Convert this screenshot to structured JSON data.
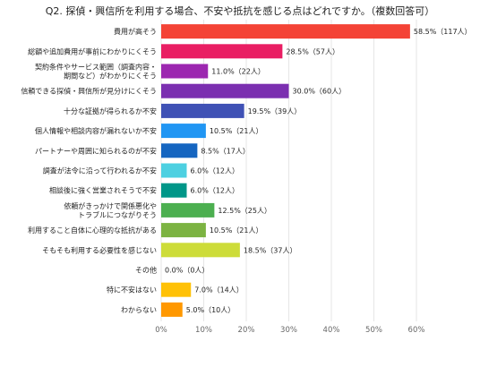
{
  "chart_data": {
    "type": "bar",
    "orientation": "horizontal",
    "title": "Q2. 探偵・興信所を利用する場合、不安や抵抗を感じる点はどれですか。（複数回答可）",
    "xlabel": "",
    "ylabel": "",
    "xlim": [
      0,
      60
    ],
    "x_ticks": [
      "0%",
      "10%",
      "20%",
      "30%",
      "40%",
      "50%",
      "60%"
    ],
    "grid": "vertical",
    "categories": [
      [
        "費用が高そう"
      ],
      [
        "総額や追加費用が事前にわかりにくそう"
      ],
      [
        "契約条件やサービス範囲（調査内容・",
        "期間など）がわかりにくそう"
      ],
      [
        "信頼できる探偵・興信所が見分けにくそう"
      ],
      [
        "十分な証拠が得られるか不安"
      ],
      [
        "個人情報や相談内容が漏れないか不安"
      ],
      [
        "パートナーや周囲に知られるのが不安"
      ],
      [
        "調査が法令に沿って行われるか不安"
      ],
      [
        "相談後に強く営業されそうで不安"
      ],
      [
        "依頼がきっかけで関係悪化や",
        "トラブルにつながりそう"
      ],
      [
        "利用すること自体に心理的な抵抗がある"
      ],
      [
        "そもそも利用する必要性を感じない"
      ],
      [
        "その他"
      ],
      [
        "特に不安はない"
      ],
      [
        "わからない"
      ]
    ],
    "values": [
      58.5,
      28.5,
      11.0,
      30.0,
      19.5,
      10.5,
      8.5,
      6.0,
      6.0,
      12.5,
      10.5,
      18.5,
      0.0,
      7.0,
      5.0
    ],
    "value_labels": [
      "58.5%（117人）",
      "28.5%（57人）",
      "11.0%（22人）",
      "30.0%（60人）",
      "19.5%（39人）",
      "10.5%（21人）",
      "8.5%（17人）",
      "6.0%（12人）",
      "6.0%（12人）",
      "12.5%（25人）",
      "10.5%（21人）",
      "18.5%（37人）",
      "0.0%（0人）",
      "7.0%（14人）",
      "5.0%（10人）"
    ],
    "colors": [
      "#f44336",
      "#e91e63",
      "#9c27b0",
      "#7b2fb0",
      "#3f51b5",
      "#2196f3",
      "#1565c0",
      "#4dd0e1",
      "#009688",
      "#4caf50",
      "#7cb342",
      "#cddc39",
      "#ffeb3b",
      "#ffc107",
      "#ff9800"
    ]
  }
}
